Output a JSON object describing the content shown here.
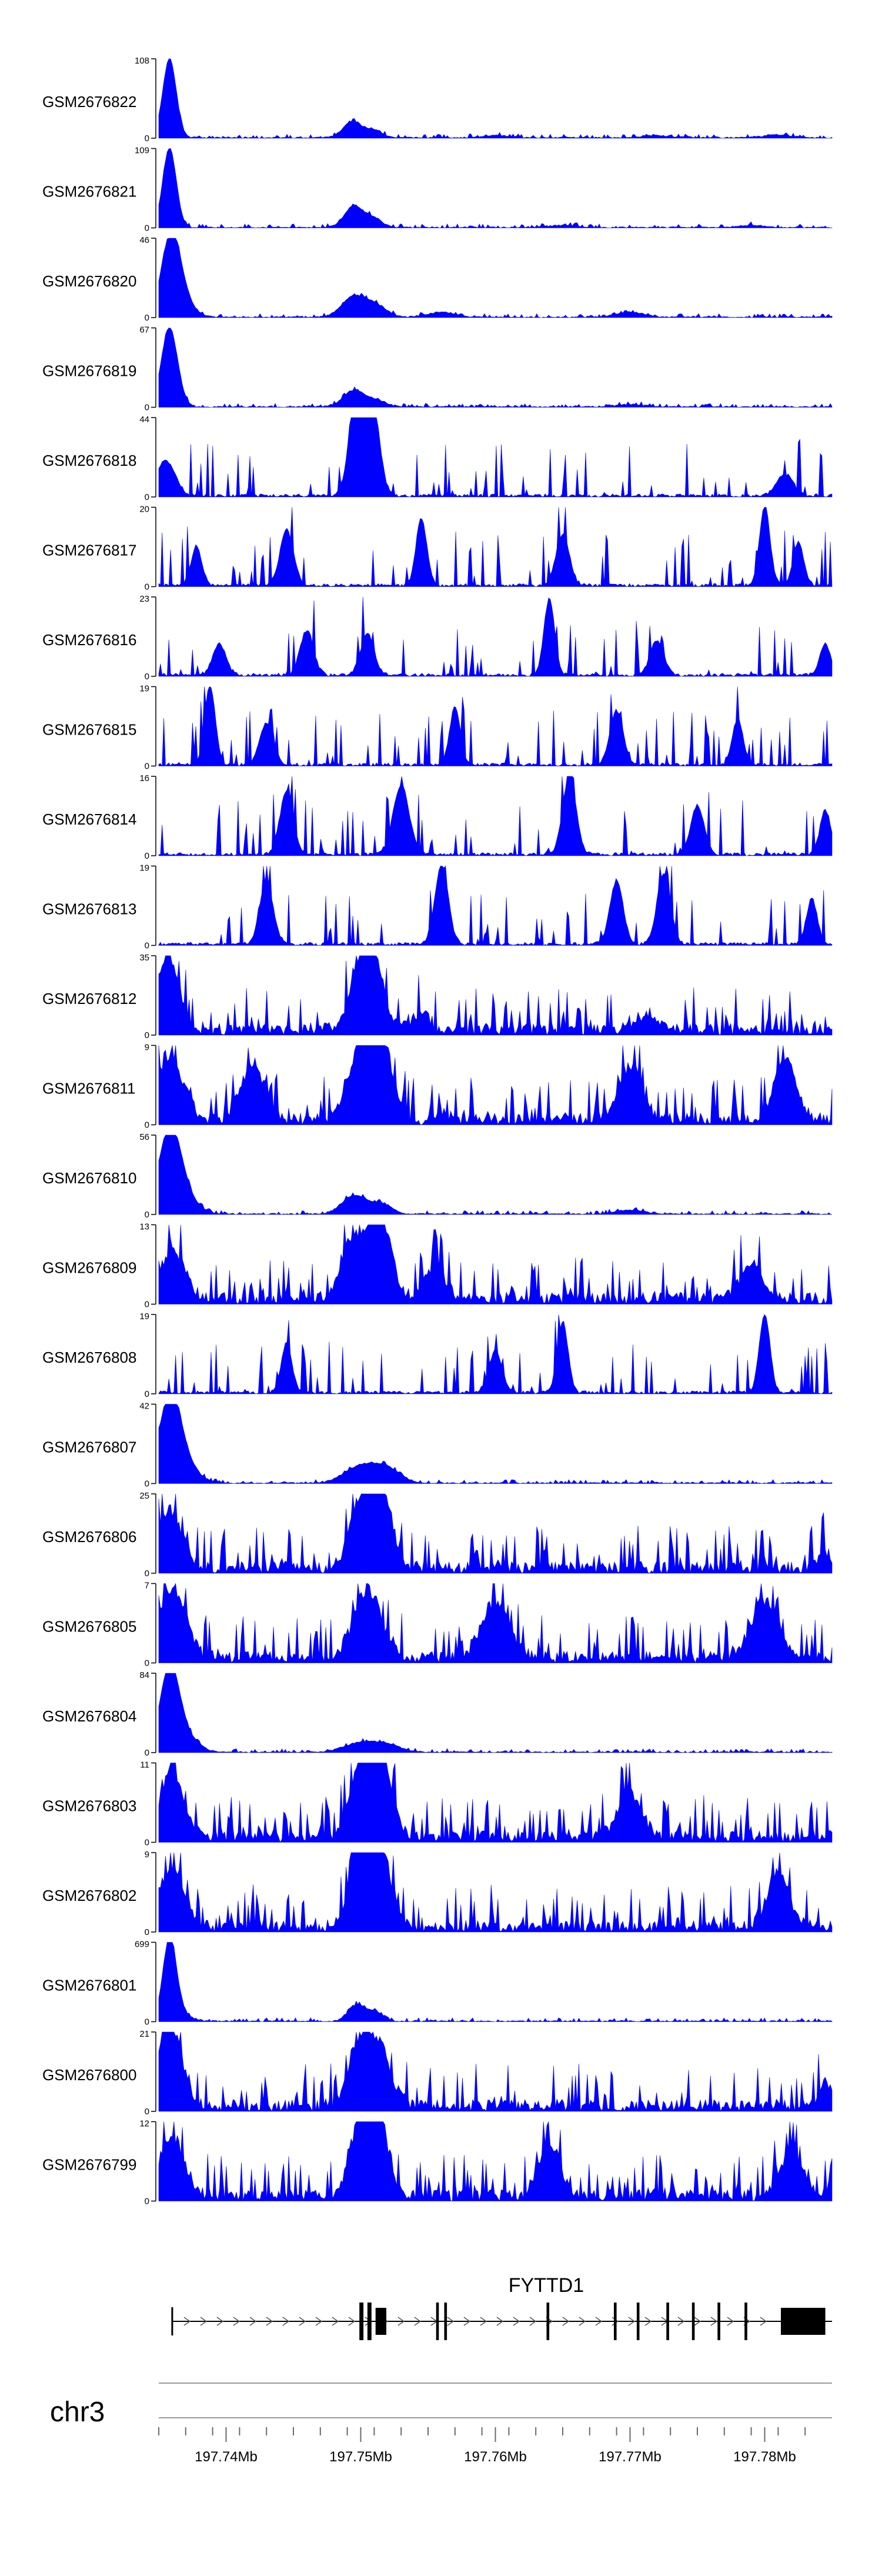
{
  "chart_data": {
    "type": "area",
    "title": "",
    "genome_region": {
      "chromosome": "chr3",
      "xlim": [
        197.735,
        197.785
      ],
      "x_tick_labels": [
        {
          "label": "197.74Mb",
          "value": 197.74
        },
        {
          "label": "197.75Mb",
          "value": 197.75
        },
        {
          "label": "197.76Mb",
          "value": 197.76
        },
        {
          "label": "197.77Mb",
          "value": 197.77
        },
        {
          "label": "197.78Mb",
          "value": 197.78
        }
      ]
    },
    "gene": {
      "name": "FYTTD1",
      "strand": "+",
      "start": 197.736,
      "end": 197.785,
      "exons": [
        {
          "start": 197.7499,
          "end": 197.7502
        },
        {
          "start": 197.7505,
          "end": 197.7508
        },
        {
          "start": 197.7511,
          "end": 197.7519
        },
        {
          "start": 197.7556,
          "end": 197.7558
        },
        {
          "start": 197.7562,
          "end": 197.7564
        },
        {
          "start": 197.7638,
          "end": 197.764
        },
        {
          "start": 197.7688,
          "end": 197.769
        },
        {
          "start": 197.7705,
          "end": 197.7707
        },
        {
          "start": 197.7727,
          "end": 197.7729
        },
        {
          "start": 197.7746,
          "end": 197.7748
        },
        {
          "start": 197.7765,
          "end": 197.7767
        },
        {
          "start": 197.7785,
          "end": 197.7787
        },
        {
          "start": 197.7812,
          "end": 197.7845
        }
      ]
    },
    "track_color": "#0000ff",
    "tracks": [
      {
        "name": "GSM2676822",
        "ymax": 108,
        "style": "sharp",
        "peaks": [
          [
            197.7358,
            108,
            0.0005
          ],
          [
            197.7494,
            22,
            0.0007
          ],
          [
            197.751,
            10,
            0.0006
          ],
          [
            197.76,
            3,
            0.001
          ],
          [
            197.772,
            3,
            0.001
          ],
          [
            197.781,
            4,
            0.001
          ]
        ]
      },
      {
        "name": "GSM2676821",
        "ymax": 109,
        "style": "sharp",
        "peaks": [
          [
            197.7358,
            109,
            0.0005
          ],
          [
            197.7495,
            30,
            0.0007
          ],
          [
            197.751,
            12,
            0.0006
          ],
          [
            197.765,
            3,
            0.001
          ],
          [
            197.779,
            3,
            0.001
          ]
        ]
      },
      {
        "name": "GSM2676820",
        "ymax": 46,
        "style": "sharp",
        "peaks": [
          [
            197.7359,
            46,
            0.0007
          ],
          [
            197.7368,
            8,
            0.0008
          ],
          [
            197.7495,
            12,
            0.0009
          ],
          [
            197.7512,
            6,
            0.0008
          ],
          [
            197.756,
            3,
            0.001
          ],
          [
            197.77,
            3,
            0.001
          ]
        ]
      },
      {
        "name": "GSM2676819",
        "ymax": 67,
        "style": "sharp",
        "peaks": [
          [
            197.7358,
            67,
            0.0006
          ],
          [
            197.7495,
            14,
            0.0008
          ],
          [
            197.7512,
            5,
            0.0007
          ],
          [
            197.77,
            2,
            0.001
          ]
        ]
      },
      {
        "name": "GSM2676818",
        "ymax": 44,
        "style": "sparse",
        "peaks": [
          [
            197.7355,
            20,
            0.0007
          ],
          [
            197.7495,
            38,
            0.0005
          ],
          [
            197.7502,
            44,
            0.0005
          ],
          [
            197.751,
            40,
            0.0005
          ],
          [
            197.7815,
            12,
            0.0006
          ]
        ]
      },
      {
        "name": "GSM2676817",
        "ymax": 20,
        "style": "sparse",
        "peaks": [
          [
            197.7378,
            10,
            0.0004
          ],
          [
            197.7445,
            14,
            0.0005
          ],
          [
            197.7545,
            17,
            0.0004
          ],
          [
            197.765,
            13,
            0.0005
          ],
          [
            197.78,
            20,
            0.0004
          ],
          [
            197.7825,
            11,
            0.0004
          ]
        ]
      },
      {
        "name": "GSM2676816",
        "ymax": 23,
        "style": "sparse",
        "peaks": [
          [
            197.7395,
            9,
            0.0005
          ],
          [
            197.746,
            13,
            0.0005
          ],
          [
            197.7505,
            12,
            0.0005
          ],
          [
            197.764,
            22,
            0.0004
          ],
          [
            197.772,
            10,
            0.0005
          ],
          [
            197.7845,
            9,
            0.0004
          ]
        ]
      },
      {
        "name": "GSM2676815",
        "ymax": 19,
        "style": "sparse",
        "peaks": [
          [
            197.7388,
            19,
            0.0004
          ],
          [
            197.743,
            10,
            0.0005
          ],
          [
            197.757,
            14,
            0.0004
          ],
          [
            197.769,
            13,
            0.0005
          ],
          [
            197.778,
            11,
            0.0004
          ]
        ]
      },
      {
        "name": "GSM2676814",
        "ymax": 16,
        "style": "sparse",
        "peaks": [
          [
            197.7445,
            13,
            0.0005
          ],
          [
            197.753,
            14,
            0.0006
          ],
          [
            197.7655,
            16,
            0.0005
          ],
          [
            197.775,
            10,
            0.0005
          ],
          [
            197.7845,
            9,
            0.0004
          ]
        ]
      },
      {
        "name": "GSM2676813",
        "ymax": 19,
        "style": "sparse",
        "peaks": [
          [
            197.743,
            15,
            0.0005
          ],
          [
            197.756,
            19,
            0.0005
          ],
          [
            197.769,
            15,
            0.0005
          ],
          [
            197.7725,
            17,
            0.0005
          ],
          [
            197.7835,
            11,
            0.0004
          ]
        ]
      },
      {
        "name": "GSM2676812",
        "ymax": 35,
        "style": "dense",
        "peaks": [
          [
            197.7357,
            32,
            0.0008
          ],
          [
            197.75,
            30,
            0.0008
          ],
          [
            197.7512,
            22,
            0.0007
          ],
          [
            197.7545,
            8,
            0.0006
          ],
          [
            197.771,
            6,
            0.0008
          ]
        ]
      },
      {
        "name": "GSM2676811",
        "ymax": 9,
        "style": "dense",
        "peaks": [
          [
            197.7358,
            7,
            0.001
          ],
          [
            197.742,
            6,
            0.0009
          ],
          [
            197.75,
            8,
            0.0009
          ],
          [
            197.7515,
            9,
            0.0008
          ],
          [
            197.77,
            6,
            0.0009
          ],
          [
            197.7815,
            7,
            0.0008
          ]
        ]
      },
      {
        "name": "GSM2676810",
        "ymax": 56,
        "style": "sharp",
        "peaks": [
          [
            197.7358,
            56,
            0.0008
          ],
          [
            197.7368,
            12,
            0.001
          ],
          [
            197.7495,
            13,
            0.0009
          ],
          [
            197.7515,
            7,
            0.0008
          ],
          [
            197.77,
            3,
            0.001
          ]
        ]
      },
      {
        "name": "GSM2676809",
        "ymax": 13,
        "style": "dense",
        "peaks": [
          [
            197.736,
            8,
            0.0009
          ],
          [
            197.7495,
            10,
            0.0009
          ],
          [
            197.7515,
            13,
            0.0008
          ],
          [
            197.7555,
            5,
            0.0008
          ],
          [
            197.779,
            6,
            0.0008
          ]
        ]
      },
      {
        "name": "GSM2676808",
        "ymax": 19,
        "style": "sparse",
        "peaks": [
          [
            197.7445,
            12,
            0.0004
          ],
          [
            197.765,
            17,
            0.0004
          ],
          [
            197.78,
            19,
            0.0004
          ],
          [
            197.76,
            10,
            0.0005
          ]
        ]
      },
      {
        "name": "GSM2676807",
        "ymax": 42,
        "style": "sharp",
        "peaks": [
          [
            197.7358,
            42,
            0.0008
          ],
          [
            197.7368,
            10,
            0.001
          ],
          [
            197.75,
            9,
            0.0012
          ],
          [
            197.752,
            7,
            0.001
          ]
        ]
      },
      {
        "name": "GSM2676806",
        "ymax": 25,
        "style": "dense",
        "peaks": [
          [
            197.7358,
            18,
            0.0009
          ],
          [
            197.75,
            20,
            0.0008
          ],
          [
            197.7515,
            25,
            0.0008
          ],
          [
            197.7845,
            5,
            0.0005
          ]
        ]
      },
      {
        "name": "GSM2676805",
        "ymax": 7,
        "style": "dense",
        "peaks": [
          [
            197.736,
            6,
            0.001
          ],
          [
            197.7505,
            6,
            0.001
          ],
          [
            197.76,
            5,
            0.001
          ],
          [
            197.78,
            5,
            0.001
          ]
        ]
      },
      {
        "name": "GSM2676804",
        "ymax": 84,
        "style": "sharp",
        "peaks": [
          [
            197.7358,
            84,
            0.0007
          ],
          [
            197.7368,
            18,
            0.001
          ],
          [
            197.75,
            10,
            0.0012
          ],
          [
            197.752,
            7,
            0.001
          ]
        ]
      },
      {
        "name": "GSM2676803",
        "ymax": 11,
        "style": "dense",
        "peaks": [
          [
            197.736,
            9,
            0.0009
          ],
          [
            197.75,
            10,
            0.0008
          ],
          [
            197.7515,
            11,
            0.0008
          ],
          [
            197.77,
            6,
            0.0009
          ]
        ]
      },
      {
        "name": "GSM2676802",
        "ymax": 9,
        "style": "dense",
        "peaks": [
          [
            197.736,
            7,
            0.0009
          ],
          [
            197.75,
            9,
            0.0008
          ],
          [
            197.7515,
            8,
            0.0008
          ],
          [
            197.781,
            6,
            0.0008
          ]
        ]
      },
      {
        "name": "GSM2676801",
        "ymax": 699,
        "style": "sharp",
        "peaks": [
          [
            197.7358,
            699,
            0.0005
          ],
          [
            197.7365,
            80,
            0.0007
          ],
          [
            197.7497,
            140,
            0.0006
          ],
          [
            197.751,
            80,
            0.0006
          ]
        ]
      },
      {
        "name": "GSM2676800",
        "ymax": 21,
        "style": "dense",
        "peaks": [
          [
            197.7358,
            21,
            0.0009
          ],
          [
            197.75,
            17,
            0.0008
          ],
          [
            197.7515,
            14,
            0.0008
          ],
          [
            197.7845,
            6,
            0.0005
          ]
        ]
      },
      {
        "name": "GSM2676799",
        "ymax": 12,
        "style": "dense",
        "peaks": [
          [
            197.736,
            9,
            0.0009
          ],
          [
            197.75,
            10,
            0.0008
          ],
          [
            197.7512,
            12,
            0.0008
          ],
          [
            197.764,
            8,
            0.0008
          ],
          [
            197.782,
            7,
            0.0008
          ]
        ]
      }
    ]
  }
}
